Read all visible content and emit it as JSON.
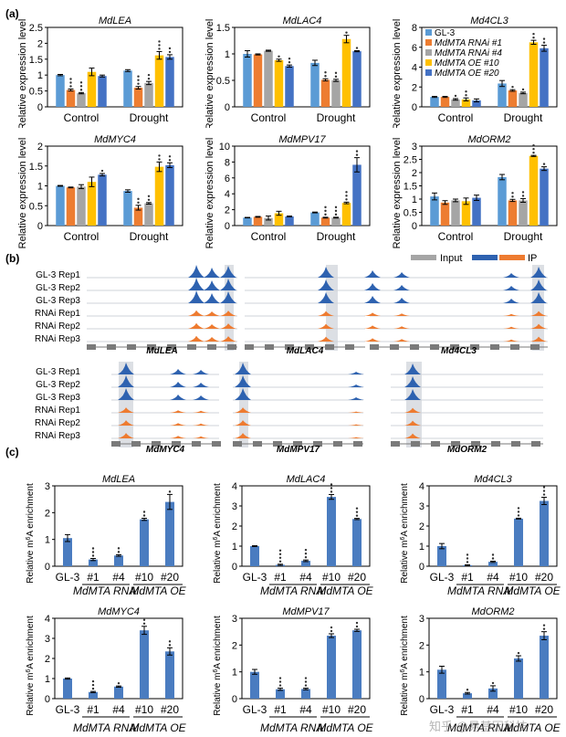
{
  "panel_labels": {
    "a": "(a)",
    "b": "(b)",
    "c": "(c)"
  },
  "colors": {
    "gl3": "#5b9bd5",
    "rnai1": "#ed7d31",
    "rnai4": "#a5a5a5",
    "oe10": "#ffc000",
    "oe20": "#4472c4",
    "input": "#a5a5a5",
    "ip_gl3": "#2e62b0",
    "ip_rnai": "#ee7b30",
    "enrich_bar": "#4a7cc0",
    "highlight": "#dcdfe4"
  },
  "panel_b": {
    "legend": {
      "input": "Input",
      "ip": "IP"
    },
    "track_labels": [
      "GL-3 Rep1",
      "GL-3 Rep2",
      "GL-3 Rep3",
      "RNAi Rep1",
      "RNAi Rep2",
      "RNAi Rep3"
    ],
    "row1_genes": [
      "MdLEA",
      "MdLAC4",
      "Md4CL3"
    ],
    "row2_genes": [
      "MdMYC4",
      "MdMPV17",
      "MdORM2"
    ]
  },
  "chart_data": [
    {
      "id": "a-MdLEA",
      "type": "bar",
      "title": "MdLEA",
      "ylabel": "Relative expression level",
      "categories": [
        "Control",
        "Drought"
      ],
      "ylim": [
        0,
        2.5
      ],
      "yticks": [
        0,
        0.5,
        1,
        1.5,
        2,
        2.5
      ],
      "series": [
        {
          "name": "GL-3",
          "values": [
            1.0,
            1.14
          ],
          "err": [
            0.02,
            0.03
          ],
          "sig": [
            "",
            ""
          ]
        },
        {
          "name": "MdMTA RNAi #1",
          "values": [
            0.53,
            0.6
          ],
          "err": [
            0.03,
            0.04
          ],
          "sig": [
            "***",
            "***"
          ]
        },
        {
          "name": "MdMTA RNAi #4",
          "values": [
            0.43,
            0.75
          ],
          "err": [
            0.02,
            0.05
          ],
          "sig": [
            "***",
            "**"
          ]
        },
        {
          "name": "MdMTA OE #10",
          "values": [
            1.1,
            1.62
          ],
          "err": [
            0.12,
            0.12
          ],
          "sig": [
            "",
            "***"
          ]
        },
        {
          "name": "MdMTA OE #20",
          "values": [
            0.97,
            1.57
          ],
          "err": [
            0.03,
            0.07
          ],
          "sig": [
            "",
            "**"
          ]
        }
      ]
    },
    {
      "id": "a-MdLAC4",
      "type": "bar",
      "title": "MdLAC4",
      "ylabel": "Relative expression level",
      "categories": [
        "Control",
        "Drought"
      ],
      "ylim": [
        0,
        1.5
      ],
      "yticks": [
        0,
        0.5,
        1,
        1.5
      ],
      "series": [
        {
          "name": "GL-3",
          "values": [
            1.0,
            0.83
          ],
          "err": [
            0.06,
            0.05
          ],
          "sig": [
            "",
            ""
          ]
        },
        {
          "name": "MdMTA RNAi #1",
          "values": [
            0.99,
            0.51
          ],
          "err": [
            0.01,
            0.02
          ],
          "sig": [
            "",
            "**"
          ]
        },
        {
          "name": "MdMTA RNAi #4",
          "values": [
            1.06,
            0.5
          ],
          "err": [
            0.01,
            0.02
          ],
          "sig": [
            "",
            "**"
          ]
        },
        {
          "name": "MdMTA OE #10",
          "values": [
            0.88,
            1.28
          ],
          "err": [
            0.02,
            0.07
          ],
          "sig": [
            "*",
            "*"
          ]
        },
        {
          "name": "MdMTA OE #20",
          "values": [
            0.77,
            1.05
          ],
          "err": [
            0.02,
            0.01
          ],
          "sig": [
            "**",
            "*"
          ]
        }
      ]
    },
    {
      "id": "a-Md4CL3",
      "type": "bar",
      "title": "Md4CL3",
      "ylabel": "Relative expression level",
      "categories": [
        "Control",
        "Drought"
      ],
      "ylim": [
        0,
        8
      ],
      "yticks": [
        0,
        2,
        4,
        6,
        8
      ],
      "legend": "top-left",
      "series": [
        {
          "name": "GL-3",
          "values": [
            1.0,
            2.35
          ],
          "err": [
            0.05,
            0.3
          ],
          "sig": [
            "",
            ""
          ]
        },
        {
          "name": "MdMTA RNAi #1",
          "values": [
            1.0,
            1.65
          ],
          "err": [
            0.05,
            0.08
          ],
          "sig": [
            "",
            "*"
          ]
        },
        {
          "name": "MdMTA RNAi #4",
          "values": [
            0.75,
            1.4
          ],
          "err": [
            0.08,
            0.08
          ],
          "sig": [
            "*",
            "*"
          ]
        },
        {
          "name": "MdMTA OE #10",
          "values": [
            0.75,
            6.5
          ],
          "err": [
            0.15,
            0.2
          ],
          "sig": [
            "**",
            "**"
          ]
        },
        {
          "name": "MdMTA OE #20",
          "values": [
            0.65,
            5.9
          ],
          "err": [
            0.15,
            0.3
          ],
          "sig": [
            "",
            "**"
          ]
        }
      ]
    },
    {
      "id": "a-MdMYC4",
      "type": "bar",
      "title": "MdMYC4",
      "ylabel": "Relative expression level",
      "categories": [
        "Control",
        "Drought"
      ],
      "ylim": [
        0,
        2
      ],
      "yticks": [
        0,
        0.5,
        1,
        1.5,
        2
      ],
      "series": [
        {
          "name": "GL-3",
          "values": [
            1.0,
            0.87
          ],
          "err": [
            0.01,
            0.03
          ],
          "sig": [
            "",
            ""
          ]
        },
        {
          "name": "MdMTA RNAi #1",
          "values": [
            0.96,
            0.45
          ],
          "err": [
            0.01,
            0.06
          ],
          "sig": [
            "",
            "**"
          ]
        },
        {
          "name": "MdMTA RNAi #4",
          "values": [
            0.98,
            0.56
          ],
          "err": [
            0.05,
            0.02
          ],
          "sig": [
            "",
            "**"
          ]
        },
        {
          "name": "MdMTA OE #10",
          "values": [
            1.1,
            1.48
          ],
          "err": [
            0.12,
            0.12
          ],
          "sig": [
            "",
            "**"
          ]
        },
        {
          "name": "MdMTA OE #20",
          "values": [
            1.28,
            1.52
          ],
          "err": [
            0.03,
            0.06
          ],
          "sig": [
            "*",
            "**"
          ]
        }
      ]
    },
    {
      "id": "a-MdMPV17",
      "type": "bar",
      "title": "MdMPV17",
      "ylabel": "Relative expression level",
      "categories": [
        "Control",
        "Drought"
      ],
      "ylim": [
        0,
        10
      ],
      "yticks": [
        0,
        2,
        4,
        6,
        8,
        10
      ],
      "series": [
        {
          "name": "GL-3",
          "values": [
            1.0,
            1.65
          ],
          "err": [
            0.03,
            0.05
          ],
          "sig": [
            "",
            ""
          ]
        },
        {
          "name": "MdMTA RNAi #1",
          "values": [
            1.1,
            1.0
          ],
          "err": [
            0.05,
            0.05
          ],
          "sig": [
            "",
            "***"
          ]
        },
        {
          "name": "MdMTA RNAi #4",
          "values": [
            0.95,
            1.0
          ],
          "err": [
            0.25,
            0.05
          ],
          "sig": [
            "",
            "***"
          ]
        },
        {
          "name": "MdMTA OE #10",
          "values": [
            1.55,
            2.85
          ],
          "err": [
            0.25,
            0.1
          ],
          "sig": [
            "",
            "***"
          ]
        },
        {
          "name": "MdMTA OE #20",
          "values": [
            1.15,
            7.65
          ],
          "err": [
            0.05,
            0.9
          ],
          "sig": [
            "",
            "**"
          ]
        }
      ]
    },
    {
      "id": "a-MdORM2",
      "type": "bar",
      "title": "MdORM2",
      "ylabel": "Relative expression level",
      "categories": [
        "Control",
        "Drought"
      ],
      "ylim": [
        0,
        3
      ],
      "yticks": [
        0,
        0.5,
        1,
        1.5,
        2,
        2.5,
        3
      ],
      "series": [
        {
          "name": "GL-3",
          "values": [
            1.1,
            1.83
          ],
          "err": [
            0.13,
            0.1
          ],
          "sig": [
            "",
            ""
          ]
        },
        {
          "name": "MdMTA RNAi #1",
          "values": [
            0.87,
            0.95
          ],
          "err": [
            0.07,
            0.04
          ],
          "sig": [
            "",
            "**"
          ]
        },
        {
          "name": "MdMTA RNAi #4",
          "values": [
            0.95,
            0.95
          ],
          "err": [
            0.05,
            0.07
          ],
          "sig": [
            "",
            "**"
          ]
        },
        {
          "name": "MdMTA OE #10",
          "values": [
            0.92,
            2.63
          ],
          "err": [
            0.12,
            0.02
          ],
          "sig": [
            "",
            "***"
          ]
        },
        {
          "name": "MdMTA OE #20",
          "values": [
            1.05,
            2.15
          ],
          "err": [
            0.1,
            0.07
          ],
          "sig": [
            "",
            "*"
          ]
        }
      ]
    },
    {
      "id": "c-MdLEA",
      "type": "bar",
      "title": "MdLEA",
      "ylabel": "Relative m6A enrichment",
      "categories": [
        "GL-3",
        "#1",
        "#4",
        "#10",
        "#20"
      ],
      "groups": [
        "MdMTA RNAi",
        "MdMTA OE"
      ],
      "ylim": [
        0,
        3
      ],
      "yticks": [
        0,
        1,
        2,
        3
      ],
      "values": [
        1.05,
        0.25,
        0.4,
        1.75,
        2.4
      ],
      "err": [
        0.13,
        0.04,
        0.03,
        0.04,
        0.28
      ],
      "sig": [
        "",
        "***",
        "**",
        "**",
        "*"
      ]
    },
    {
      "id": "c-MdLAC4",
      "type": "bar",
      "title": "MdLAC4",
      "ylabel": "Relative m6A enrichment",
      "categories": [
        "GL-3",
        "#1",
        "#4",
        "#10",
        "#20"
      ],
      "groups": [
        "MdMTA RNAi",
        "MdMTA OE"
      ],
      "ylim": [
        0,
        4
      ],
      "yticks": [
        0,
        1,
        2,
        3,
        4
      ],
      "values": [
        1.0,
        0.07,
        0.27,
        3.45,
        2.35
      ],
      "err": [
        0.02,
        0.03,
        0.04,
        0.12,
        0.03
      ],
      "sig": [
        "",
        "****",
        "***",
        "***",
        "***"
      ]
    },
    {
      "id": "c-Md4CL3",
      "type": "bar",
      "title": "Md4CL3",
      "ylabel": "Relative m6A enrichment",
      "categories": [
        "GL-3",
        "#1",
        "#4",
        "#10",
        "#20"
      ],
      "groups": [
        "MdMTA RNAi",
        "MdMTA OE"
      ],
      "ylim": [
        0,
        4
      ],
      "yticks": [
        0,
        1,
        2,
        3,
        4
      ],
      "values": [
        1.0,
        0.05,
        0.22,
        2.37,
        3.25
      ],
      "err": [
        0.13,
        0.02,
        0.03,
        0.02,
        0.18
      ],
      "sig": [
        "",
        "***",
        "**",
        "***",
        "***"
      ]
    },
    {
      "id": "c-MdMYC4",
      "type": "bar",
      "title": "MdMYC4",
      "ylabel": "Relative m6A enrichment",
      "categories": [
        "GL-3",
        "#1",
        "#4",
        "#10",
        "#20"
      ],
      "groups": [
        "MdMTA RNAi",
        "MdMTA OE"
      ],
      "ylim": [
        0,
        4
      ],
      "yticks": [
        0,
        1,
        2,
        3,
        4
      ],
      "values": [
        1.0,
        0.33,
        0.6,
        3.4,
        2.35
      ],
      "err": [
        0.03,
        0.03,
        0.03,
        0.2,
        0.18
      ],
      "sig": [
        "",
        "***",
        "*",
        "**",
        "**"
      ]
    },
    {
      "id": "c-MdMPV17",
      "type": "bar",
      "title": "MdMPV17",
      "ylabel": "Relative m6A enrichment",
      "categories": [
        "GL-3",
        "#1",
        "#4",
        "#10",
        "#20"
      ],
      "groups": [
        "MdMTA RNAi",
        "MdMTA OE"
      ],
      "ylim": [
        0,
        3
      ],
      "yticks": [
        0,
        1,
        2,
        3
      ],
      "values": [
        1.0,
        0.35,
        0.36,
        2.35,
        2.55
      ],
      "err": [
        0.09,
        0.04,
        0.03,
        0.07,
        0.04
      ],
      "sig": [
        "",
        "***",
        "***",
        "**",
        "**"
      ]
    },
    {
      "id": "c-MdORM2",
      "type": "bar",
      "title": "MdORM2",
      "ylabel": "Relative m6A enrichment",
      "categories": [
        "GL-3",
        "#1",
        "#4",
        "#10",
        "#20"
      ],
      "groups": [
        "MdMTA RNAi",
        "MdMTA OE"
      ],
      "ylim": [
        0,
        3
      ],
      "yticks": [
        0,
        1,
        2,
        3
      ],
      "values": [
        1.08,
        0.2,
        0.38,
        1.5,
        2.35
      ],
      "err": [
        0.13,
        0.03,
        0.1,
        0.1,
        0.15
      ],
      "sig": [
        "",
        "*",
        "*",
        "*",
        "**"
      ]
    }
  ],
  "watermark": "知乎 @易基因科技"
}
